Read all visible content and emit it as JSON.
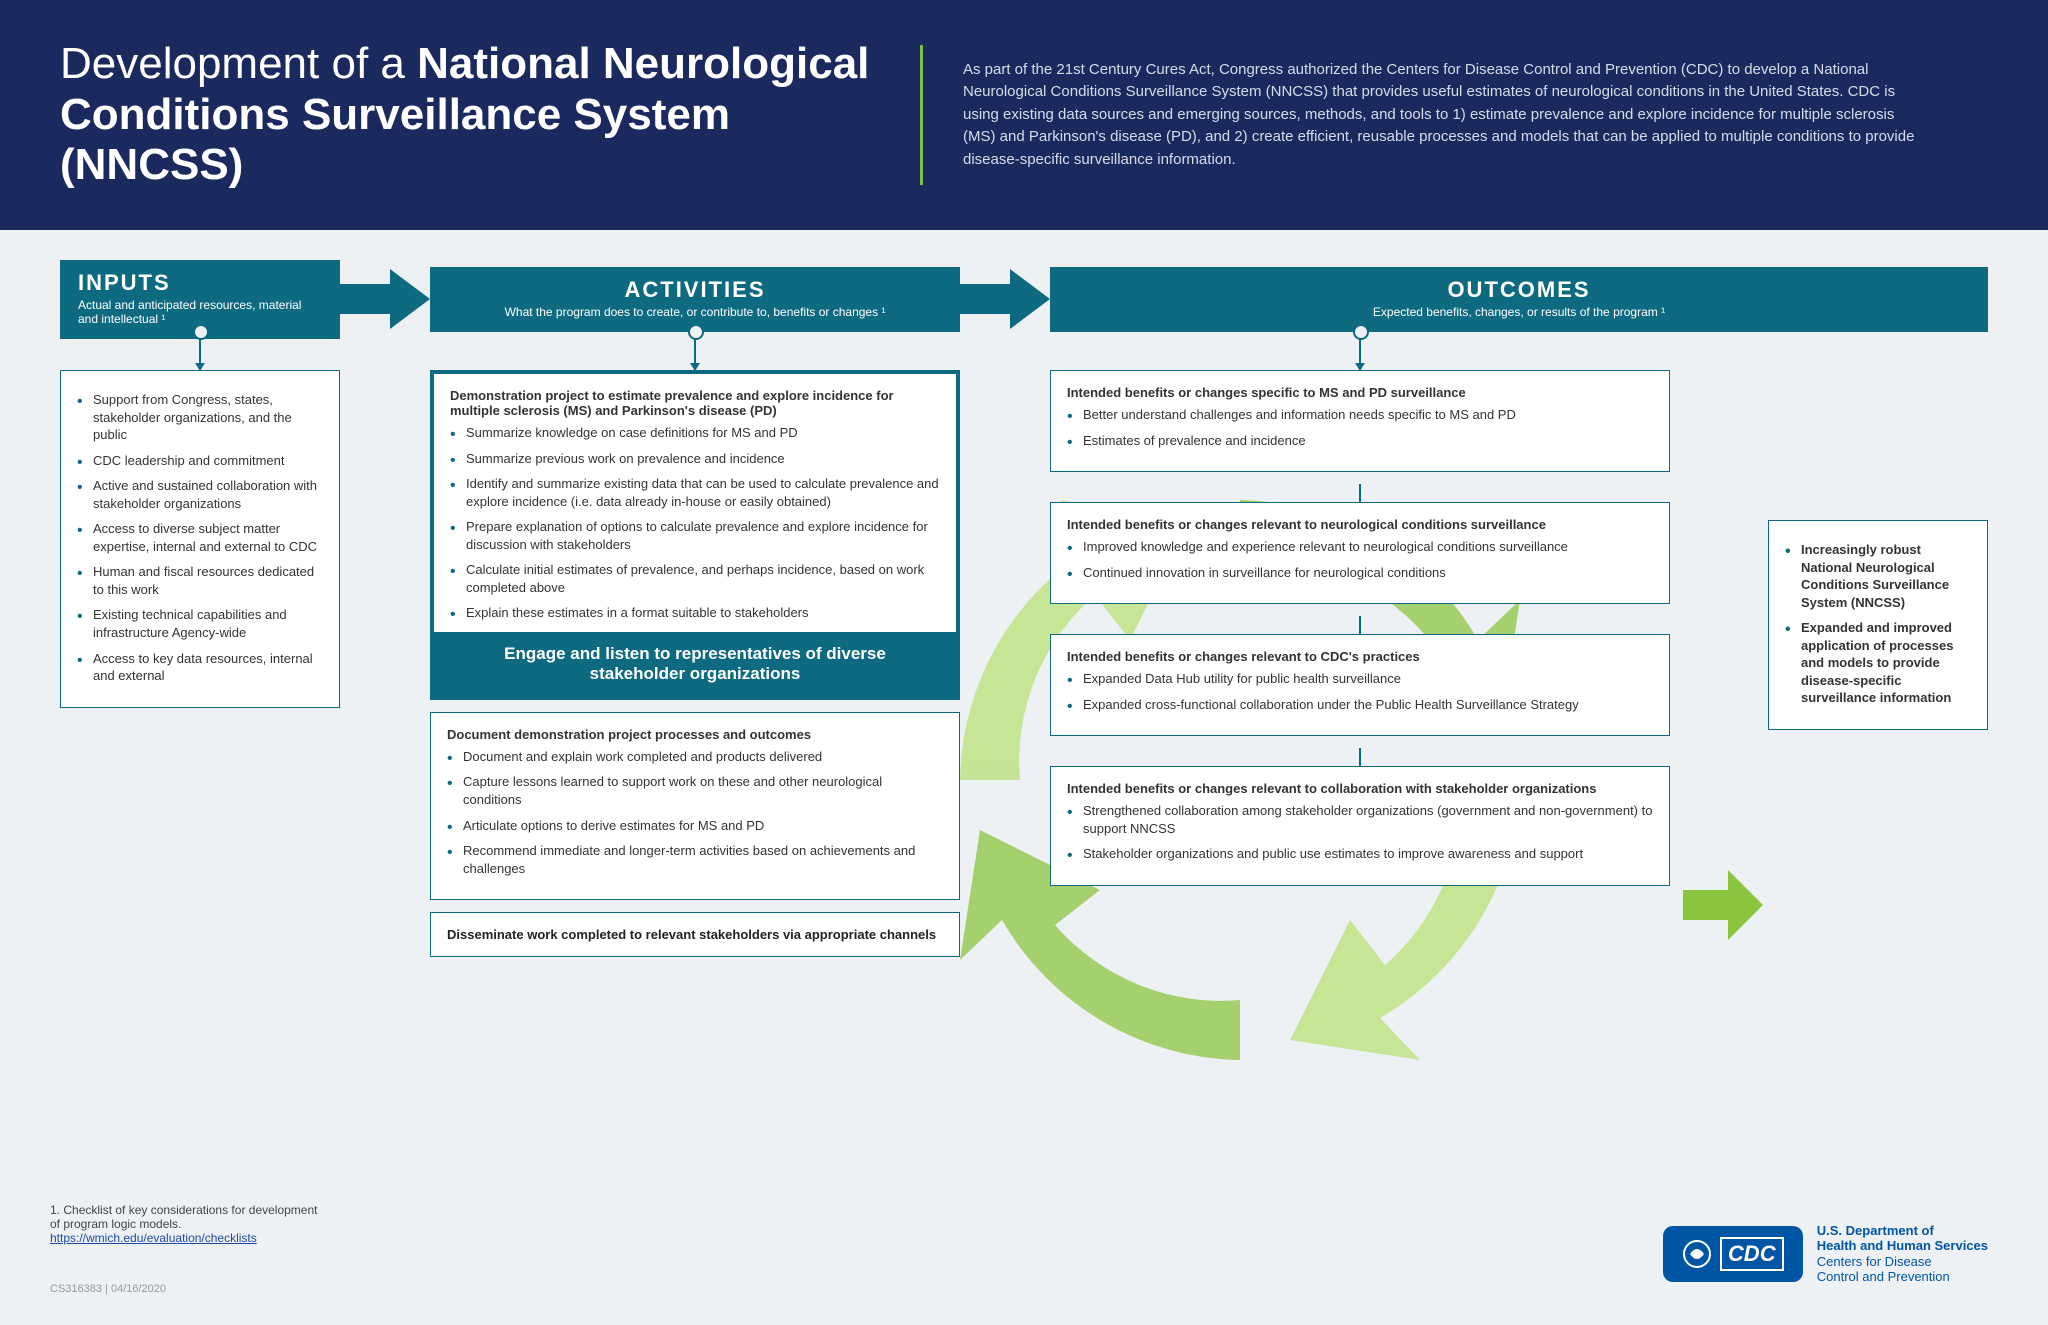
{
  "colors": {
    "header_bg": "#1a2a5e",
    "teal": "#0e6a80",
    "page_bg": "#eef1f4",
    "green_arrows": "#8bc540",
    "green_light": "#b8e076",
    "cdc_blue": "#0055a5"
  },
  "header": {
    "title_html": "Development of a <b>National Neurological Conditions Surveillance System (NNCSS)</b>",
    "description": "As part of the 21st Century Cures Act, Congress authorized the Centers for Disease Control and Prevention (CDC) to develop a National Neurological Conditions Surveillance System (NNCSS) that provides useful estimates of neurological conditions in the United States. CDC is using existing data sources and emerging sources, methods, and tools to 1) estimate prevalence and explore incidence for multiple sclerosis (MS) and Parkinson's disease (PD), and 2) create efficient, reusable processes and models that can be applied to multiple conditions to provide disease-specific surveillance information."
  },
  "columns": {
    "inputs": {
      "title": "INPUTS",
      "sub": "Actual and anticipated resources, material and intellectual ¹"
    },
    "activities": {
      "title": "ACTIVITIES",
      "sub": "What the program does to create, or contribute to, benefits or changes ¹"
    },
    "outcomes": {
      "title": "OUTCOMES",
      "sub": "Expected benefits, changes, or results of the program ¹"
    }
  },
  "inputs_box": {
    "items": [
      "Support from Congress, states, stakeholder organizations, and the public",
      "CDC leadership and commitment",
      "Active and sustained collaboration with stakeholder organizations",
      "Access to diverse subject matter expertise, internal and external to CDC",
      "Human and fiscal resources dedicated to this work",
      "Existing technical capabilities and infrastructure Agency-wide",
      "Access to key data resources, internal and external"
    ]
  },
  "activities": {
    "demo": {
      "title": "Demonstration project to estimate prevalence and explore incidence for multiple sclerosis (MS) and Parkinson's disease (PD)",
      "items": [
        "Summarize knowledge on case definitions for MS and PD",
        "Summarize previous work on prevalence and incidence",
        "Identify and summarize existing data that can be used to calculate prevalence and explore incidence (i.e. data already in-house or easily obtained)",
        "Prepare explanation of options to calculate prevalence and explore incidence for discussion with stakeholders",
        "Calculate initial estimates of prevalence, and perhaps incidence, based on work completed above",
        "Explain these estimates in a format suitable to stakeholders"
      ],
      "banner": "Engage and listen to representatives of diverse stakeholder organizations"
    },
    "doc": {
      "title": "Document demonstration project processes and outcomes",
      "items": [
        "Document and explain work completed and products delivered",
        "Capture lessons learned to support work on these and other neurological conditions",
        "Articulate options to derive estimates for MS and PD",
        "Recommend immediate and longer-term activities based on achievements and challenges"
      ]
    },
    "disseminate": {
      "title": "Disseminate work completed to relevant stakeholders via appropriate channels"
    }
  },
  "outcomes": {
    "b1": {
      "title": "Intended benefits or changes specific to MS and PD surveillance",
      "items": [
        "Better understand challenges and information needs specific to MS and PD",
        "Estimates of prevalence and incidence"
      ]
    },
    "b2": {
      "title": "Intended benefits or changes relevant to neurological conditions surveillance",
      "items": [
        "Improved knowledge and experience relevant to neurological conditions surveillance",
        "Continued innovation in surveillance for neurological conditions"
      ]
    },
    "b3": {
      "title": "Intended benefits or changes relevant to CDC's practices",
      "items": [
        "Expanded Data Hub utility for public health surveillance",
        "Expanded cross-functional collaboration under the Public Health Surveillance Strategy"
      ]
    },
    "b4": {
      "title": "Intended benefits or changes relevant to collaboration with stakeholder organizations",
      "items": [
        "Strengthened collaboration among stakeholder organizations (government and non-government) to support NNCSS",
        "Stakeholder organizations and public use estimates to improve awareness and support"
      ]
    }
  },
  "final_box": {
    "items": [
      "Increasingly robust National Neurological Conditions Surveillance System (NNCSS)",
      "Expanded and improved application of processes and models to provide disease-specific surveillance information"
    ]
  },
  "footnote": {
    "num": "1.",
    "text": "Checklist of key considerations for development of program logic models.",
    "link": "https://wmich.edu/evaluation/checklists"
  },
  "doc_id": "CS316383   |   04/16/2020",
  "cdc": {
    "line1": "U.S. Department of",
    "line2": "Health and Human Services",
    "line3": "Centers for Disease",
    "line4": "Control and Prevention",
    "badge": "CDC"
  }
}
